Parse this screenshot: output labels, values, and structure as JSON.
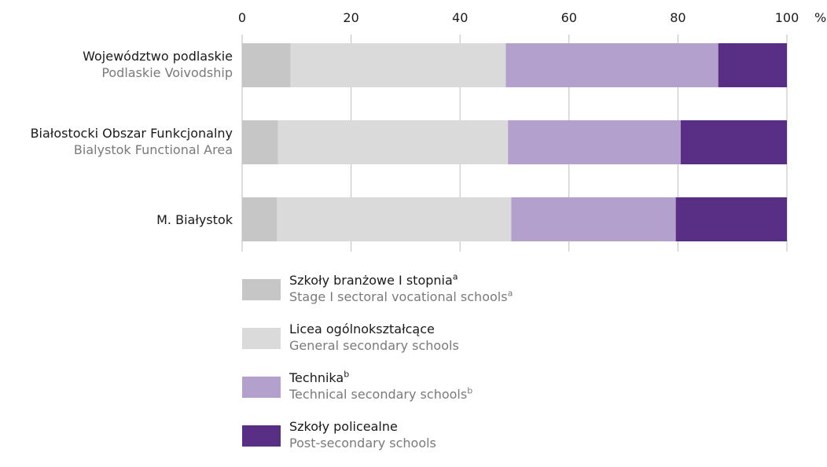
{
  "chart_data": {
    "type": "bar",
    "orientation": "horizontal",
    "stacked": true,
    "unit": "%",
    "xlim": [
      0,
      100
    ],
    "x_ticks": [
      "0",
      "20",
      "40",
      "60",
      "80",
      "100"
    ],
    "grid": true,
    "legend_position": "bottom",
    "categories": [
      {
        "label": "Województwo podlaskie",
        "sublabel": "Podlaskie Voivodship"
      },
      {
        "label": "Białostocki Obszar Funkcjonalny",
        "sublabel": "Bialystok Functional Area"
      },
      {
        "label": "M. Białystok",
        "sublabel": ""
      }
    ],
    "series": [
      {
        "name": "Szkoły branżowe I stopnia",
        "name_sup": "a",
        "name_en": "Stage I sectoral vocational schools",
        "name_en_sup": "a",
        "color": "#c6c6c6",
        "values": [
          8.9,
          6.6,
          6.4
        ]
      },
      {
        "name": "Licea ogólnokształcące",
        "name_sup": "",
        "name_en": "General secondary schools",
        "name_en_sup": "",
        "color": "#dadada",
        "values": [
          39.5,
          42.2,
          43.0
        ]
      },
      {
        "name": "Technika",
        "name_sup": "b",
        "name_en": "Technical secondary schools",
        "name_en_sup": "b",
        "color": "#b3a0cd",
        "values": [
          39.0,
          31.7,
          30.2
        ]
      },
      {
        "name": "Szkoły policealne",
        "name_sup": "",
        "name_en": "Post-secondary schools",
        "name_en_sup": "",
        "color": "#582f85",
        "values": [
          12.6,
          19.5,
          20.4
        ]
      }
    ]
  }
}
